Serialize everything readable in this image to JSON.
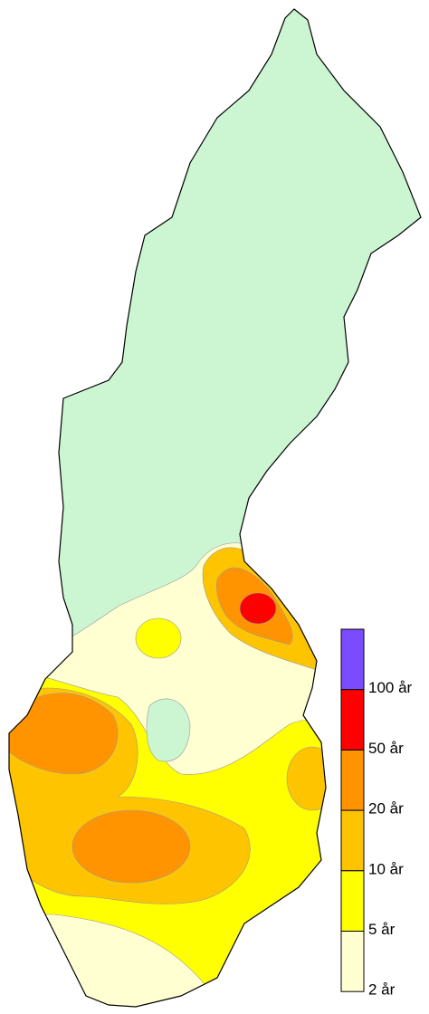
{
  "legend": {
    "colors": [
      "#7b4cff",
      "#ff0000",
      "#ff9400",
      "#ffc400",
      "#ffff00",
      "#ffffd2"
    ],
    "labels": [
      "100 år",
      "50 år",
      "20 år",
      "10 år",
      "5 år",
      "2 år"
    ]
  }
}
